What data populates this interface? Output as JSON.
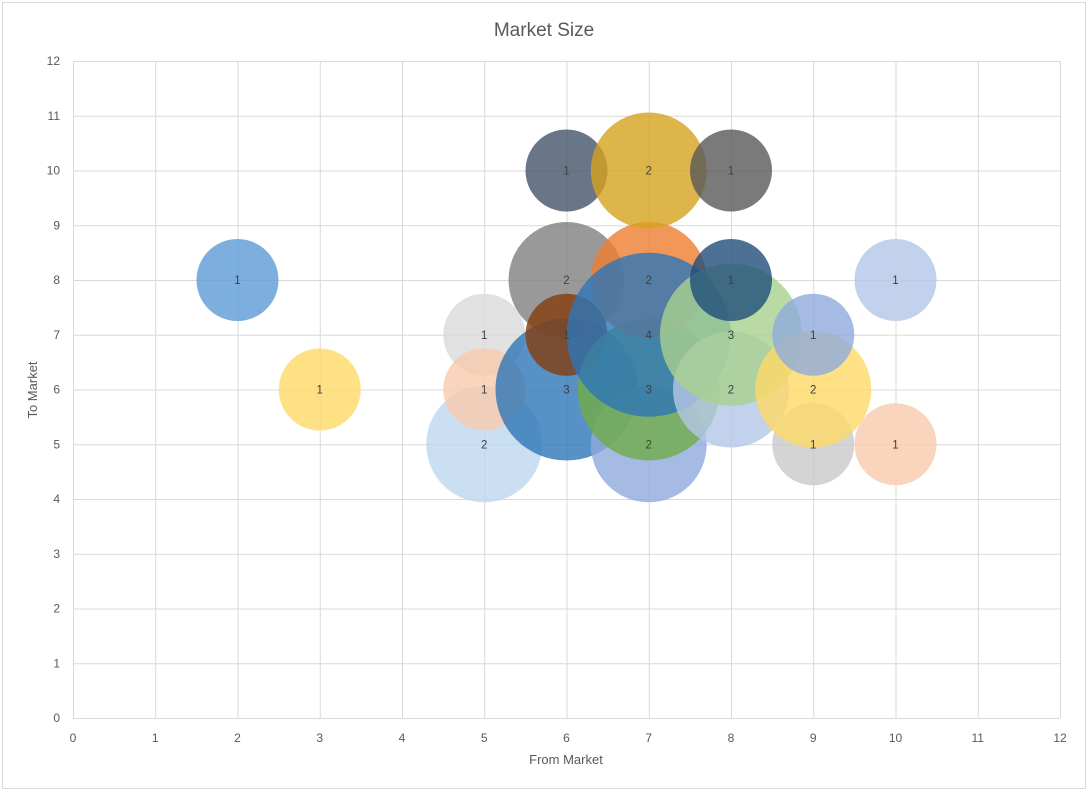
{
  "chart_data": {
    "type": "bubble",
    "title": "Market Size",
    "xlabel": "From Market",
    "ylabel": "To Market",
    "xlim": [
      0,
      12
    ],
    "ylim": [
      0,
      12
    ],
    "xticks": [
      0,
      1,
      2,
      3,
      4,
      5,
      6,
      7,
      8,
      9,
      10,
      11,
      12
    ],
    "yticks": [
      0,
      1,
      2,
      3,
      4,
      5,
      6,
      7,
      8,
      9,
      10,
      11,
      12
    ],
    "grid": true,
    "legend": "none",
    "points": [
      {
        "x": 2,
        "y": 8,
        "size": 1,
        "color": "#5B9BD5"
      },
      {
        "x": 3,
        "y": 6,
        "size": 1,
        "color": "#FFD966"
      },
      {
        "x": 5,
        "y": 5,
        "size": 2,
        "color": "#BDD7EE"
      },
      {
        "x": 5,
        "y": 7,
        "size": 1,
        "color": "#D9D9D9"
      },
      {
        "x": 5,
        "y": 6,
        "size": 1,
        "color": "#F8CBAD"
      },
      {
        "x": 6,
        "y": 10,
        "size": 1,
        "color": "#44546A"
      },
      {
        "x": 6,
        "y": 8,
        "size": 2,
        "color": "#7F7F7F"
      },
      {
        "x": 6,
        "y": 6,
        "size": 3,
        "color": "#2E75B6"
      },
      {
        "x": 6,
        "y": 7,
        "size": 1,
        "color": "#843C0C"
      },
      {
        "x": 7,
        "y": 5,
        "size": 2,
        "color": "#8FAADC"
      },
      {
        "x": 7,
        "y": 6,
        "size": 3,
        "color": "#70AD47"
      },
      {
        "x": 7,
        "y": 8,
        "size": 2,
        "color": "#ED7D31"
      },
      {
        "x": 7,
        "y": 7,
        "size": 4,
        "color": "#2E75B6"
      },
      {
        "x": 7,
        "y": 10,
        "size": 2,
        "color": "#D6A21D"
      },
      {
        "x": 8,
        "y": 6,
        "size": 2,
        "color": "#B4C7E7"
      },
      {
        "x": 8,
        "y": 7,
        "size": 3,
        "color": "#A9D18E"
      },
      {
        "x": 8,
        "y": 8,
        "size": 1,
        "color": "#1F4E79"
      },
      {
        "x": 8,
        "y": 10,
        "size": 1,
        "color": "#595959"
      },
      {
        "x": 9,
        "y": 5,
        "size": 1,
        "color": "#C9C9C9"
      },
      {
        "x": 9,
        "y": 6,
        "size": 2,
        "color": "#FFD966"
      },
      {
        "x": 9,
        "y": 7,
        "size": 1,
        "color": "#8FAADC"
      },
      {
        "x": 10,
        "y": 8,
        "size": 1,
        "color": "#B4C7E7"
      },
      {
        "x": 10,
        "y": 5,
        "size": 1,
        "color": "#F8CBAD"
      }
    ]
  }
}
